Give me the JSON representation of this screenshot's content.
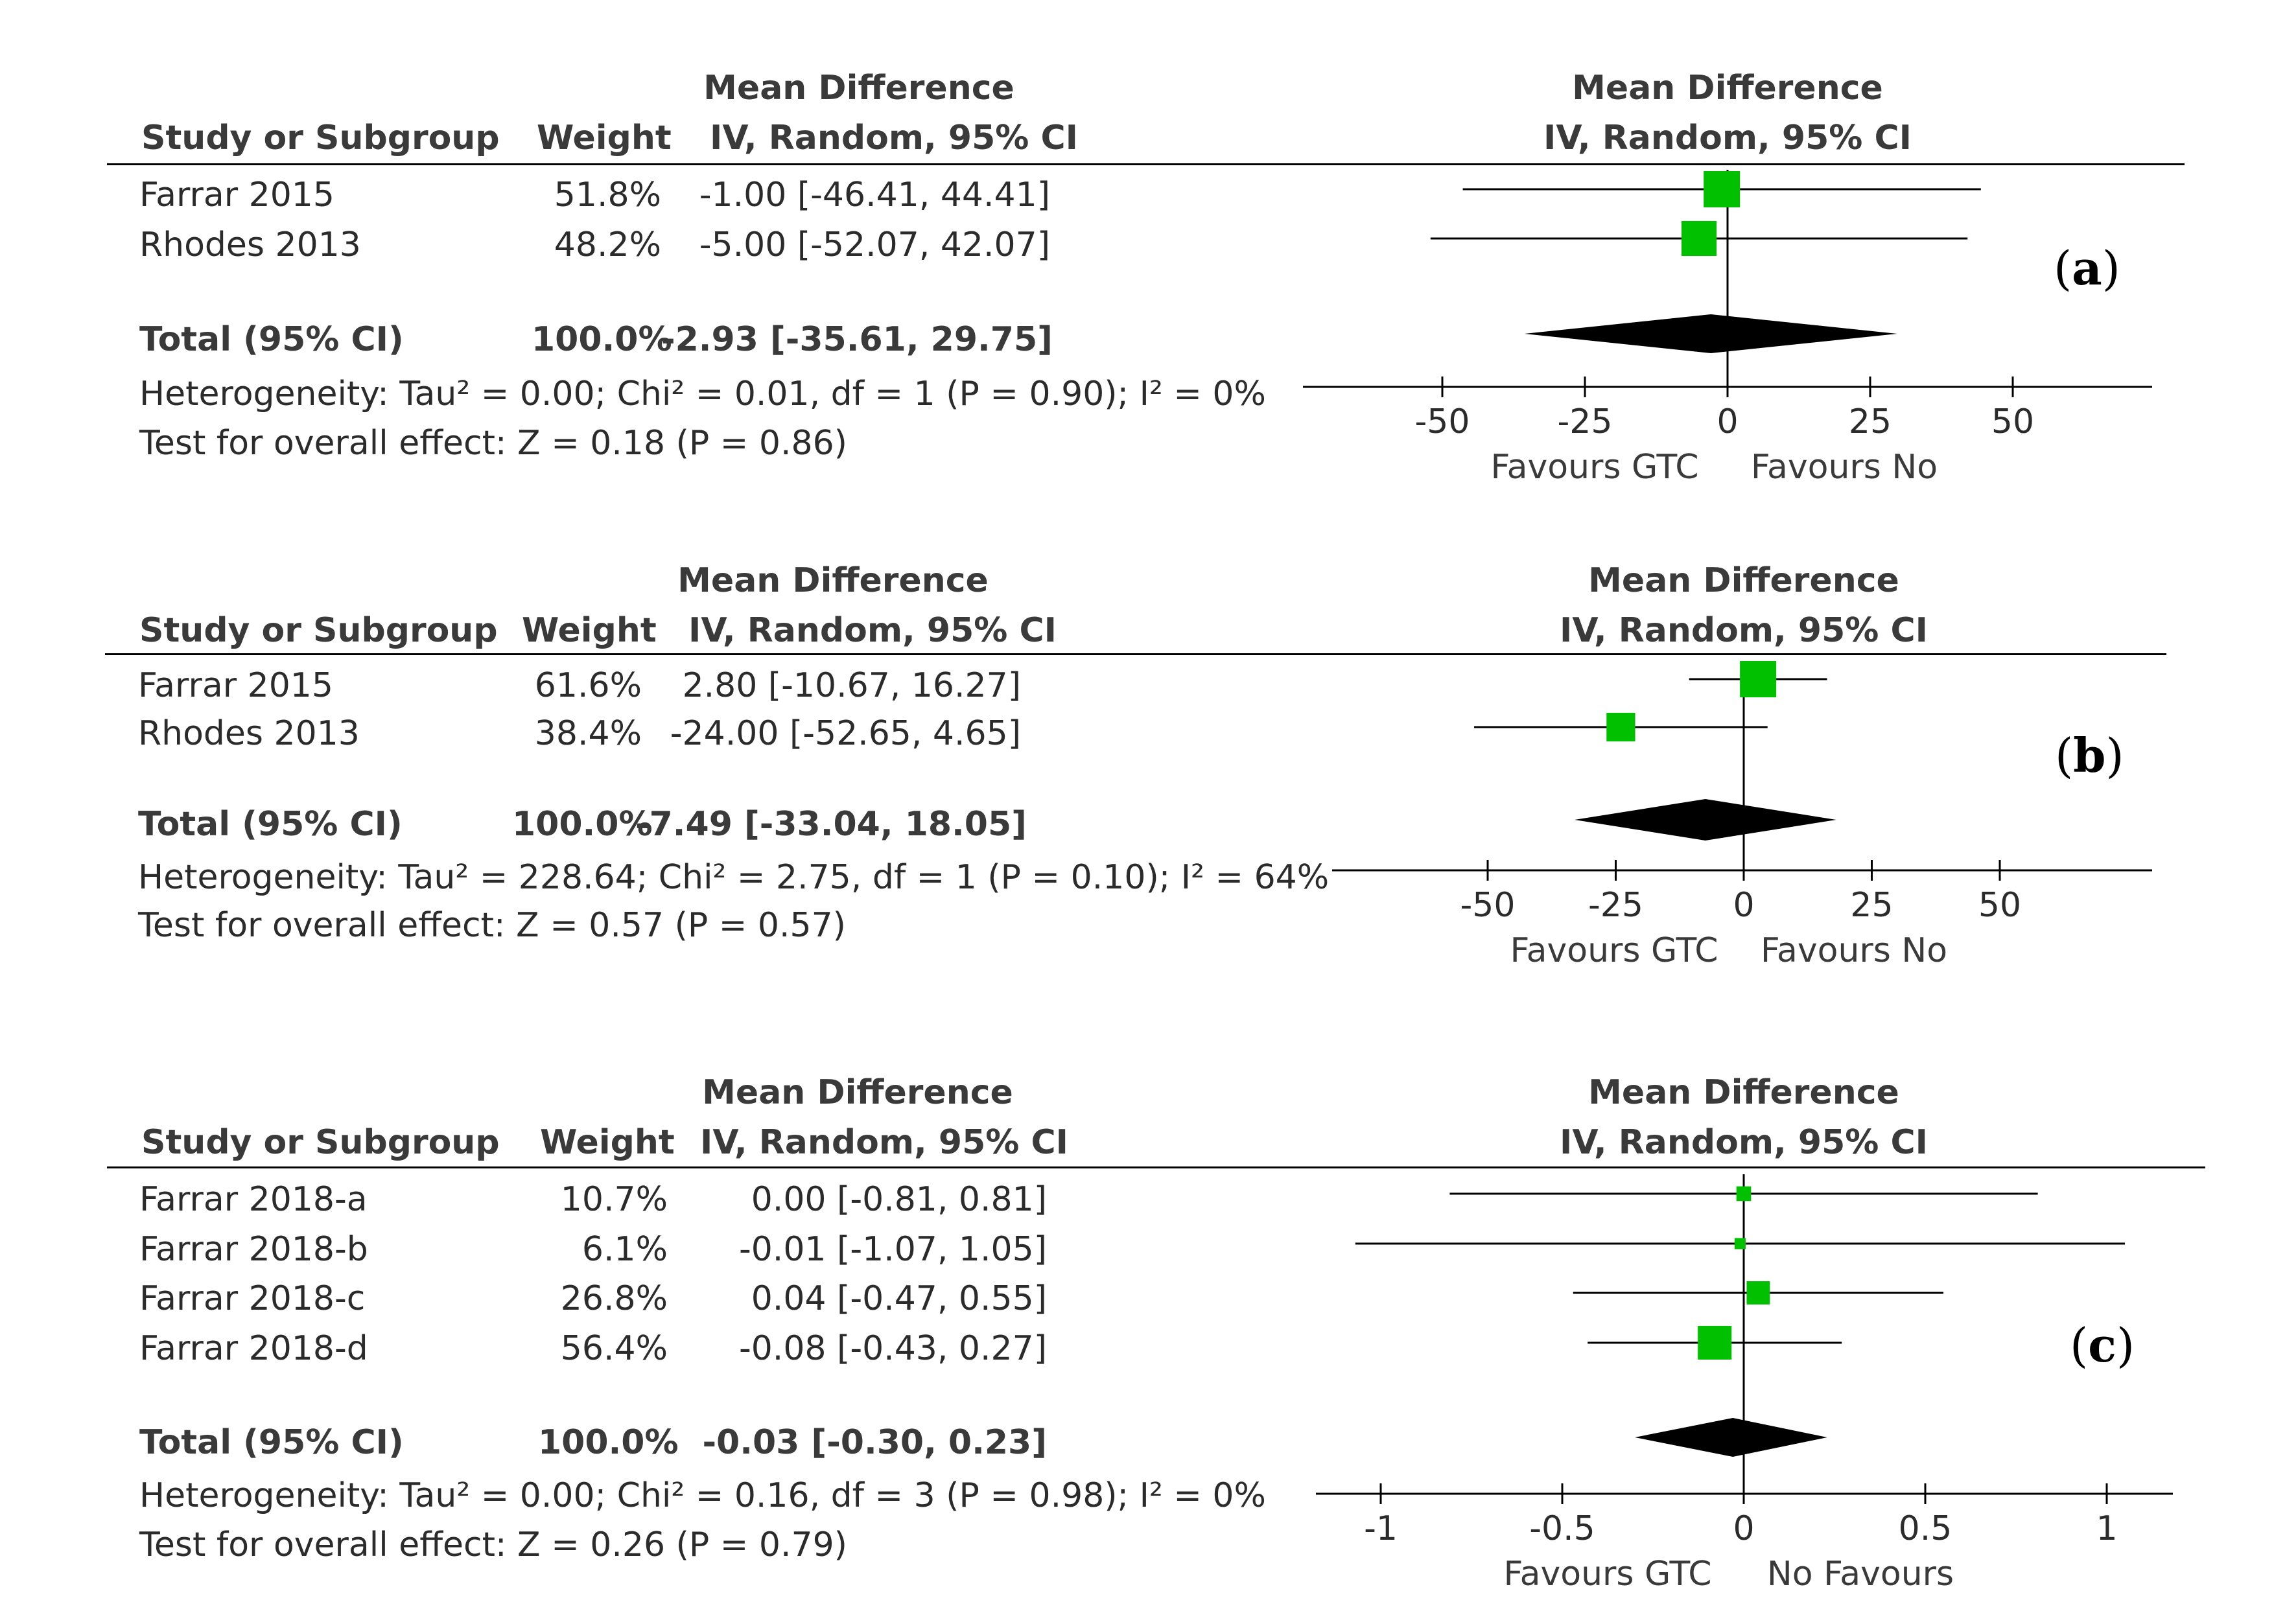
{
  "chart_data": [
    {
      "type": "forest",
      "panel_label": "a",
      "headers": {
        "study": "Study or Subgroup",
        "weight": "Weight",
        "md_line1": "Mean Difference",
        "md_line2": "IV, Random, 95% CI",
        "plot_line1": "Mean Difference",
        "plot_line2": "IV, Random, 95% CI"
      },
      "studies": [
        {
          "name": "Farrar 2015",
          "weight": "51.8%",
          "ci_text": "-1.00 [-46.41, 44.41]",
          "md": -1.0,
          "lo": -46.41,
          "hi": 44.41,
          "w": 51.8
        },
        {
          "name": "Rhodes 2013",
          "weight": "48.2%",
          "ci_text": "-5.00 [-52.07, 42.07]",
          "md": -5.0,
          "lo": -52.07,
          "hi": 42.07,
          "w": 48.2
        }
      ],
      "total": {
        "label": "Total (95% CI)",
        "weight": "100.0%",
        "ci_text": "-2.93 [-35.61, 29.75]",
        "md": -2.93,
        "lo": -35.61,
        "hi": 29.75
      },
      "heterogeneity": "Heterogeneity: Tau² = 0.00; Chi² = 0.01, df = 1 (P = 0.90); I² = 0%",
      "overall": "Test for overall effect: Z = 0.18 (P = 0.86)",
      "xlim": [
        -75,
        75
      ],
      "ticks": [
        -50,
        -25,
        0,
        25,
        50
      ],
      "tick_labels": [
        "-50",
        "-25",
        "0",
        "25",
        "50"
      ],
      "favours_left": "Favours GTC",
      "favours_right": "Favours No"
    },
    {
      "type": "forest",
      "panel_label": "b",
      "headers": {
        "study": "Study or Subgroup",
        "weight": "Weight",
        "md_line1": "Mean Difference",
        "md_line2": "IV, Random, 95% CI",
        "plot_line1": "Mean Difference",
        "plot_line2": "IV, Random, 95% CI"
      },
      "studies": [
        {
          "name": "Farrar 2015",
          "weight": "61.6%",
          "ci_text": "2.80 [-10.67, 16.27]",
          "md": 2.8,
          "lo": -10.67,
          "hi": 16.27,
          "w": 61.6
        },
        {
          "name": "Rhodes 2013",
          "weight": "38.4%",
          "ci_text": "-24.00 [-52.65, 4.65]",
          "md": -24.0,
          "lo": -52.65,
          "hi": 4.65,
          "w": 38.4
        }
      ],
      "total": {
        "label": "Total (95% CI)",
        "weight": "100.0%",
        "ci_text": "-7.49 [-33.04, 18.05]",
        "md": -7.49,
        "lo": -33.04,
        "hi": 18.05
      },
      "heterogeneity": "Heterogeneity: Tau² = 228.64; Chi² = 2.75, df = 1 (P = 0.10); I² = 64%",
      "overall": "Test for overall effect: Z = 0.57 (P = 0.57)",
      "xlim": [
        -75,
        75
      ],
      "ticks": [
        -50,
        -25,
        0,
        25,
        50
      ],
      "tick_labels": [
        "-50",
        "-25",
        "0",
        "25",
        "50"
      ],
      "favours_left": "Favours GTC",
      "favours_right": "Favours No"
    },
    {
      "type": "forest",
      "panel_label": "c",
      "headers": {
        "study": "Study or Subgroup",
        "weight": "Weight",
        "md_line1": "Mean Difference",
        "md_line2": "IV, Random, 95% CI",
        "plot_line1": "Mean Difference",
        "plot_line2": "IV, Random, 95% CI"
      },
      "studies": [
        {
          "name": "Farrar 2018-a",
          "weight": "10.7%",
          "ci_text": "0.00 [-0.81, 0.81]",
          "md": 0.0,
          "lo": -0.81,
          "hi": 0.81,
          "w": 10.7
        },
        {
          "name": "Farrar 2018-b",
          "weight": "6.1%",
          "ci_text": "-0.01 [-1.07, 1.05]",
          "md": -0.01,
          "lo": -1.07,
          "hi": 1.05,
          "w": 6.1
        },
        {
          "name": "Farrar 2018-c",
          "weight": "26.8%",
          "ci_text": "0.04 [-0.47, 0.55]",
          "md": 0.04,
          "lo": -0.47,
          "hi": 0.55,
          "w": 26.8
        },
        {
          "name": "Farrar 2018-d",
          "weight": "56.4%",
          "ci_text": "-0.08 [-0.43, 0.27]",
          "md": -0.08,
          "lo": -0.43,
          "hi": 0.27,
          "w": 56.4
        }
      ],
      "total": {
        "label": "Total (95% CI)",
        "weight": "100.0%",
        "ci_text": "-0.03 [-0.30, 0.23]",
        "md": -0.03,
        "lo": -0.3,
        "hi": 0.23
      },
      "heterogeneity": "Heterogeneity: Tau² = 0.00; Chi² = 0.16, df = 3 (P = 0.98); I² = 0%",
      "overall": "Test for overall effect: Z = 0.26 (P = 0.79)",
      "xlim": [
        -1.2,
        1.2
      ],
      "ticks": [
        -1,
        -0.5,
        0,
        0.5,
        1
      ],
      "tick_labels": [
        "-1",
        "-0.5",
        "0",
        "0.5",
        "1"
      ],
      "favours_left": "Favours GTC",
      "favours_right": "No Favours"
    }
  ],
  "colors": {
    "marker": "#00c000",
    "line": "#000000",
    "text": "#2b2b2b"
  }
}
